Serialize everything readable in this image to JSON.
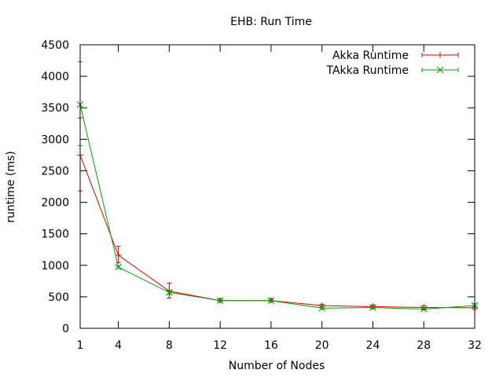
{
  "chart_data": {
    "type": "line",
    "title": "EHB: Run Time",
    "xlabel": "Number of Nodes",
    "ylabel": "runtime (ms)",
    "xlim": [
      1,
      32
    ],
    "ylim": [
      0,
      4500
    ],
    "xticks": [
      1,
      4,
      8,
      12,
      16,
      20,
      24,
      28,
      32
    ],
    "yticks": [
      0,
      500,
      1000,
      1500,
      2000,
      2500,
      3000,
      3500,
      4000,
      4500
    ],
    "grid": false,
    "legend_position": "top-right",
    "x": [
      1,
      4,
      8,
      12,
      16,
      20,
      24,
      28,
      32
    ],
    "series": [
      {
        "name": "Akka Runtime",
        "color": "#e00000",
        "marker": "plus",
        "values": [
          2750,
          1160,
          590,
          440,
          440,
          360,
          345,
          330,
          325
        ],
        "err_low": [
          2180,
          1040,
          480,
          420,
          420,
          340,
          320,
          300,
          300
        ],
        "err_high": [
          3340,
          1300,
          720,
          470,
          470,
          380,
          370,
          360,
          350
        ]
      },
      {
        "name": "TAkka Runtime",
        "color": "#00a000",
        "marker": "cross",
        "values": [
          3550,
          970,
          570,
          440,
          440,
          320,
          330,
          305,
          360
        ],
        "err_low": [
          2900,
          960,
          540,
          420,
          420,
          300,
          310,
          290,
          330
        ],
        "err_high": [
          4230,
          990,
          600,
          460,
          460,
          340,
          350,
          320,
          390
        ]
      }
    ]
  }
}
